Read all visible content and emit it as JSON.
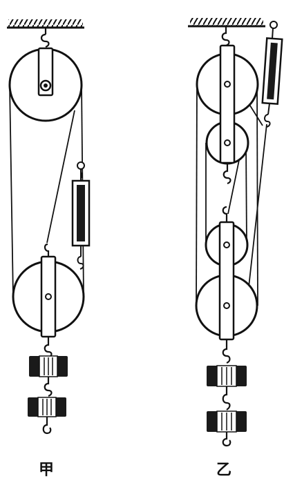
{
  "labels": {
    "left": "甲",
    "right": "乙"
  },
  "colors": {
    "ink": "#111111",
    "paper": "#ffffff"
  }
}
